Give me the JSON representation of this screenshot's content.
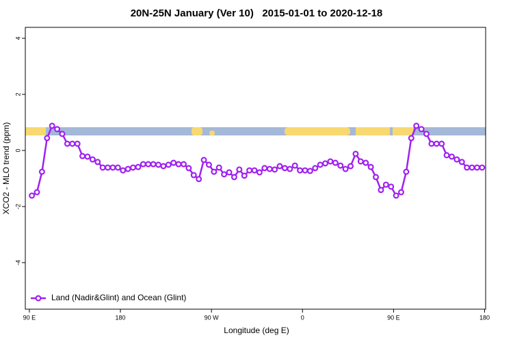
{
  "chart_data": {
    "type": "line",
    "title": "20N-25N January (Ver 10)   2015-01-01 to 2020-12-18",
    "xlabel": "Longitude (deg E)",
    "ylabel": "XCO2 - MLO trend (ppm)",
    "xlim": [
      86,
      541
    ],
    "ylim": [
      -5.66,
      4.39
    ],
    "xticks": [
      {
        "value": 90,
        "label": "90 E"
      },
      {
        "value": 180,
        "label": "180"
      },
      {
        "value": 270,
        "label": "90 W"
      },
      {
        "value": 360,
        "label": "0"
      },
      {
        "value": 450,
        "label": "90 E"
      },
      {
        "value": 540,
        "label": "180"
      }
    ],
    "yticks": [
      -4,
      -2,
      0,
      2,
      4
    ],
    "legend": "bottom-left",
    "x": [
      92.5,
      97.5,
      102.5,
      107.5,
      112.5,
      117.5,
      122.5,
      127.5,
      132.5,
      137.5,
      142.5,
      147.5,
      152.5,
      157.5,
      162.5,
      167.5,
      172.5,
      177.5,
      182.5,
      187.5,
      192.5,
      197.5,
      202.5,
      207.5,
      212.5,
      217.5,
      222.5,
      227.5,
      232.5,
      237.5,
      242.5,
      247.5,
      252.5,
      257.5,
      262.5,
      267.5,
      272.5,
      277.5,
      282.5,
      287.5,
      292.5,
      297.5,
      302.5,
      307.5,
      312.5,
      317.5,
      322.5,
      327.5,
      332.5,
      337.5,
      342.5,
      347.5,
      352.5,
      357.5,
      362.5,
      367.5,
      372.5,
      377.5,
      382.5,
      387.5,
      392.5,
      397.5,
      402.5,
      407.5,
      412.5,
      417.5,
      422.5,
      427.5,
      432.5,
      437.5,
      442.5,
      447.5,
      452.5,
      457.5,
      462.5,
      467.5,
      472.5,
      477.5,
      482.5,
      487.5,
      492.5,
      497.5,
      502.5,
      507.5,
      512.5,
      517.5,
      522.5,
      527.5,
      532.5,
      537.5
    ],
    "series": [
      {
        "name": "Land (Nadir&Glint) and Ocean (Glint)",
        "color": "#a020f0",
        "values": [
          -1.61,
          -1.49,
          -0.76,
          0.44,
          0.88,
          0.76,
          0.59,
          0.24,
          0.24,
          0.24,
          -0.2,
          -0.22,
          -0.32,
          -0.41,
          -0.61,
          -0.61,
          -0.61,
          -0.61,
          -0.71,
          -0.66,
          -0.61,
          -0.59,
          -0.49,
          -0.49,
          -0.49,
          -0.51,
          -0.56,
          -0.51,
          -0.44,
          -0.49,
          -0.49,
          -0.63,
          -0.88,
          -1.02,
          -0.34,
          -0.51,
          -0.76,
          -0.61,
          -0.85,
          -0.78,
          -0.95,
          -0.68,
          -0.9,
          -0.71,
          -0.71,
          -0.78,
          -0.63,
          -0.66,
          -0.68,
          -0.56,
          -0.63,
          -0.66,
          -0.54,
          -0.71,
          -0.71,
          -0.73,
          -0.63,
          -0.51,
          -0.46,
          -0.39,
          -0.44,
          -0.54,
          -0.66,
          -0.56,
          -0.12,
          -0.39,
          -0.44,
          -0.59,
          -0.95,
          -1.41,
          -1.22,
          -1.29,
          -1.61,
          -1.49,
          -0.76,
          0.44,
          0.88,
          0.76,
          0.59,
          0.24,
          0.24,
          0.24,
          -0.17,
          -0.22,
          -0.32,
          -0.41,
          -0.61,
          -0.61,
          -0.61,
          -0.61
        ]
      }
    ]
  }
}
